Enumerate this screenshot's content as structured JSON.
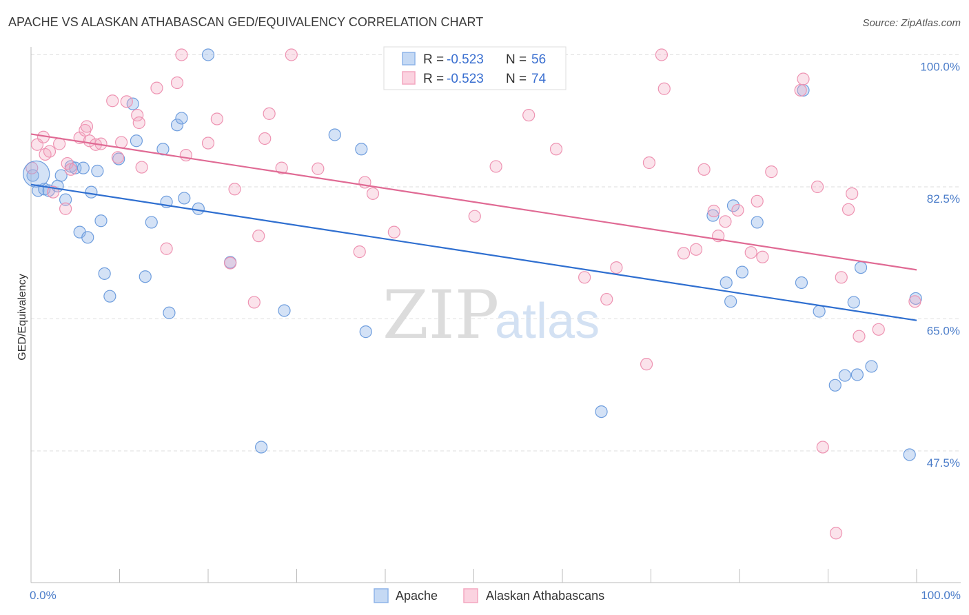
{
  "chart_data": {
    "type": "scatter",
    "title": "APACHE VS ALASKAN ATHABASCAN GED/EQUIVALENCY CORRELATION CHART",
    "source": "Source: ZipAtlas.com",
    "ylabel": "GED/Equivalency",
    "xlim": [
      0,
      100
    ],
    "ylim": [
      30,
      101.5
    ],
    "x_tick_labels": [
      "0.0%",
      "100.0%"
    ],
    "y_ticks": [
      {
        "value": 100.0,
        "label": "100.0%"
      },
      {
        "value": 82.5,
        "label": "82.5%"
      },
      {
        "value": 65.0,
        "label": "65.0%"
      },
      {
        "value": 47.5,
        "label": "47.5%"
      }
    ],
    "grid": "horizontal dashed",
    "legend_position": "top-center",
    "watermark": {
      "zip": "ZIP",
      "atlas": "atlas"
    },
    "legend": [
      {
        "r_label": "R =",
        "r_value": "-0.523",
        "n_label": "N =",
        "n_value": "56"
      },
      {
        "r_label": "R =",
        "r_value": "-0.523",
        "n_label": "N =",
        "n_value": "74"
      }
    ],
    "series": [
      {
        "name": "Apache",
        "color": "#8fb4e8",
        "line_color": "#2f6fd0",
        "trend": {
          "x": [
            0,
            100
          ],
          "y": [
            82.8,
            64.8
          ]
        },
        "points": [
          [
            0.2,
            84.0
          ],
          [
            0.8,
            82.0
          ],
          [
            1.5,
            82.2
          ],
          [
            2.0,
            82.0
          ],
          [
            3.0,
            82.6
          ],
          [
            3.4,
            84.0
          ],
          [
            3.9,
            80.8
          ],
          [
            4.5,
            85.2
          ],
          [
            5.0,
            85.0
          ],
          [
            5.5,
            76.5
          ],
          [
            5.9,
            85.0
          ],
          [
            6.4,
            75.8
          ],
          [
            6.8,
            81.8
          ],
          [
            7.5,
            84.6
          ],
          [
            7.9,
            78.0
          ],
          [
            8.3,
            71.0
          ],
          [
            8.9,
            68.0
          ],
          [
            9.9,
            86.2
          ],
          [
            11.5,
            93.5
          ],
          [
            11.9,
            88.6
          ],
          [
            12.9,
            70.6
          ],
          [
            13.6,
            77.8
          ],
          [
            14.9,
            87.5
          ],
          [
            15.6,
            65.8
          ],
          [
            15.3,
            80.5
          ],
          [
            16.5,
            90.7
          ],
          [
            17.0,
            91.6
          ],
          [
            17.3,
            81.0
          ],
          [
            18.9,
            79.6
          ],
          [
            20.0,
            100.0
          ],
          [
            22.5,
            72.5
          ],
          [
            26.0,
            48.0
          ],
          [
            28.6,
            66.1
          ],
          [
            34.3,
            89.4
          ],
          [
            37.3,
            87.5
          ],
          [
            37.8,
            63.3
          ],
          [
            64.4,
            52.7
          ],
          [
            77.0,
            78.7
          ],
          [
            78.5,
            69.8
          ],
          [
            79.0,
            67.3
          ],
          [
            79.3,
            80.0
          ],
          [
            80.3,
            71.2
          ],
          [
            82.0,
            77.8
          ],
          [
            87.0,
            69.8
          ],
          [
            87.2,
            95.3
          ],
          [
            89.0,
            66.0
          ],
          [
            90.8,
            56.2
          ],
          [
            91.9,
            57.5
          ],
          [
            92.9,
            67.2
          ],
          [
            93.3,
            57.6
          ],
          [
            93.7,
            71.8
          ],
          [
            94.9,
            58.7
          ],
          [
            99.2,
            47.0
          ],
          [
            99.9,
            67.7
          ]
        ],
        "large_point": [
          0.6,
          84.2
        ]
      },
      {
        "name": "Alaskan Athabascans",
        "color": "#f4a7c0",
        "line_color": "#e06a94",
        "trend": {
          "x": [
            0,
            100
          ],
          "y": [
            89.5,
            71.5
          ]
        },
        "points": [
          [
            0.1,
            85.0
          ],
          [
            0.7,
            88.1
          ],
          [
            1.4,
            89.1
          ],
          [
            1.6,
            86.8
          ],
          [
            2.1,
            87.2
          ],
          [
            2.5,
            81.8
          ],
          [
            3.2,
            88.2
          ],
          [
            3.9,
            79.6
          ],
          [
            4.1,
            85.6
          ],
          [
            4.5,
            84.8
          ],
          [
            5.5,
            89.0
          ],
          [
            6.1,
            90.0
          ],
          [
            6.3,
            90.5
          ],
          [
            6.6,
            88.6
          ],
          [
            7.3,
            88.1
          ],
          [
            7.9,
            88.2
          ],
          [
            9.2,
            93.9
          ],
          [
            9.8,
            86.4
          ],
          [
            10.2,
            88.4
          ],
          [
            10.8,
            93.8
          ],
          [
            12.0,
            92.0
          ],
          [
            12.2,
            91.0
          ],
          [
            12.5,
            85.1
          ],
          [
            14.2,
            95.6
          ],
          [
            15.3,
            74.3
          ],
          [
            16.5,
            96.3
          ],
          [
            17.0,
            100.0
          ],
          [
            17.5,
            86.7
          ],
          [
            20.0,
            88.3
          ],
          [
            21.0,
            91.5
          ],
          [
            22.5,
            72.4
          ],
          [
            23.0,
            82.2
          ],
          [
            25.2,
            67.2
          ],
          [
            25.7,
            76.0
          ],
          [
            26.4,
            88.9
          ],
          [
            26.9,
            92.2
          ],
          [
            28.3,
            85.0
          ],
          [
            29.4,
            100.0
          ],
          [
            32.4,
            84.9
          ],
          [
            37.1,
            73.9
          ],
          [
            37.7,
            83.1
          ],
          [
            38.6,
            81.6
          ],
          [
            41.0,
            76.5
          ],
          [
            50.1,
            78.6
          ],
          [
            52.5,
            85.2
          ],
          [
            56.2,
            92.0
          ],
          [
            59.3,
            87.5
          ],
          [
            62.5,
            70.5
          ],
          [
            65.0,
            67.6
          ],
          [
            66.1,
            71.8
          ],
          [
            69.5,
            59.0
          ],
          [
            69.8,
            85.7
          ],
          [
            71.2,
            100.0
          ],
          [
            71.5,
            95.5
          ],
          [
            73.7,
            73.7
          ],
          [
            75.1,
            74.2
          ],
          [
            76.0,
            84.8
          ],
          [
            77.1,
            79.3
          ],
          [
            77.6,
            76.0
          ],
          [
            78.4,
            77.9
          ],
          [
            79.8,
            79.4
          ],
          [
            81.3,
            73.8
          ],
          [
            82.0,
            80.6
          ],
          [
            82.6,
            73.2
          ],
          [
            83.6,
            84.5
          ],
          [
            86.9,
            95.3
          ],
          [
            87.2,
            96.8
          ],
          [
            88.8,
            82.5
          ],
          [
            89.4,
            48.0
          ],
          [
            90.9,
            36.6
          ],
          [
            91.5,
            70.5
          ],
          [
            92.3,
            79.5
          ],
          [
            92.7,
            81.6
          ],
          [
            93.5,
            62.7
          ],
          [
            95.7,
            63.6
          ],
          [
            99.8,
            67.3
          ]
        ],
        "large_point": [
          0.0,
          0.0
        ]
      }
    ]
  },
  "bottom_legend": [
    {
      "label": "Apache",
      "color": "#8fb4e8"
    },
    {
      "label": "Alaskan Athabascans",
      "color": "#f4a7c0"
    }
  ]
}
